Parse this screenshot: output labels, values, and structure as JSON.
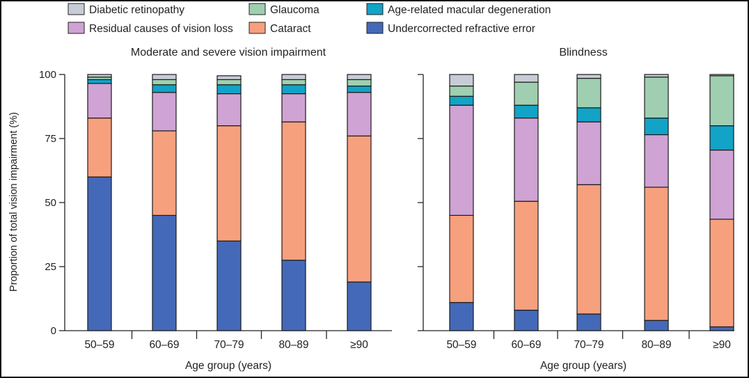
{
  "chart_data": {
    "type": "bar",
    "stacked": true,
    "legend": {
      "placement": "top",
      "entries": [
        {
          "name": "Diabetic retinopathy",
          "color": "#c8ccd6"
        },
        {
          "name": "Glaucoma",
          "color": "#9fcfb0"
        },
        {
          "name": "Age-related macular degeneration",
          "color": "#12a3c6"
        },
        {
          "name": "Residual causes of vision loss",
          "color": "#cfa3d3"
        },
        {
          "name": "Cataract",
          "color": "#f7a07e"
        },
        {
          "name": "Undercorrected refractive error",
          "color": "#4469b8"
        }
      ]
    },
    "ylabel": "Proportion of total vision impairment (%)",
    "ylim": [
      0,
      100
    ],
    "yticks": [
      "0",
      "25",
      "50",
      "75",
      "100"
    ],
    "panels": [
      {
        "title": "Moderate and severe vision impairment",
        "xlabel": "Age group (years)",
        "categories": [
          "50–59",
          "60–69",
          "70–79",
          "80–89",
          "≥90"
        ],
        "series": [
          {
            "name": "Undercorrected refractive error",
            "values": [
              60,
              45,
              35,
              27.5,
              19
            ]
          },
          {
            "name": "Cataract",
            "values": [
              23,
              33,
              45,
              54,
              57
            ]
          },
          {
            "name": "Residual causes of vision loss",
            "values": [
              13.5,
              15,
              12.5,
              11,
              17
            ]
          },
          {
            "name": "Age-related macular degeneration",
            "values": [
              1.5,
              3,
              3.5,
              3.5,
              2.5
            ]
          },
          {
            "name": "Glaucoma",
            "values": [
              1,
              2,
              2,
              2,
              2.5
            ]
          },
          {
            "name": "Diabetic retinopathy",
            "values": [
              1,
              2,
              1.5,
              2,
              2
            ]
          }
        ]
      },
      {
        "title": "Blindness",
        "xlabel": "Age group (years)",
        "categories": [
          "50–59",
          "60–69",
          "70–79",
          "80–89",
          "≥90"
        ],
        "series": [
          {
            "name": "Undercorrected refractive error",
            "values": [
              11,
              8,
              6.5,
              4,
              1.5
            ]
          },
          {
            "name": "Cataract",
            "values": [
              34,
              42.5,
              50.5,
              52,
              42
            ]
          },
          {
            "name": "Residual causes of vision loss",
            "values": [
              43,
              32.5,
              24.5,
              20.5,
              27
            ]
          },
          {
            "name": "Age-related macular degeneration",
            "values": [
              3.5,
              5,
              5.5,
              6.5,
              9.5
            ]
          },
          {
            "name": "Glaucoma",
            "values": [
              4,
              9,
              11.5,
              16,
              19.5
            ]
          },
          {
            "name": "Diabetic retinopathy",
            "values": [
              4.5,
              3,
              1.5,
              1,
              0.5
            ]
          }
        ]
      }
    ]
  }
}
